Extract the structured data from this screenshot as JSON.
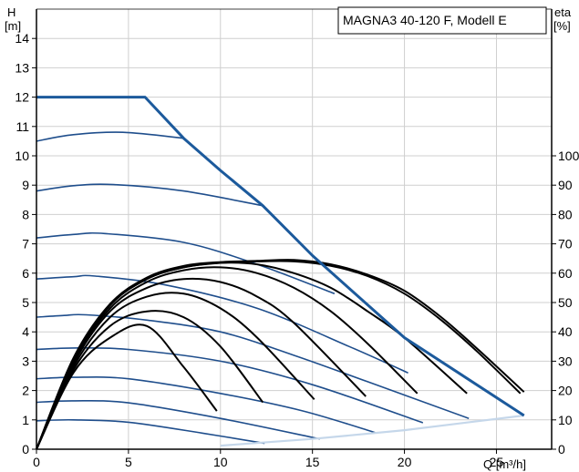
{
  "chart_data": {
    "type": "line",
    "title": "MAGNA3 40-120 F, Modell E",
    "xlabel": "Q [m³/h]",
    "ylabel_left": [
      "H",
      "[m]"
    ],
    "ylabel_right": [
      "eta",
      "[%]"
    ],
    "xlim": [
      0,
      28
    ],
    "ylim_left": [
      0,
      15
    ],
    "ylim_right": [
      0,
      150
    ],
    "grid": true,
    "x_ticks": [
      0,
      5,
      10,
      15,
      20,
      25
    ],
    "y_ticks_left": [
      0,
      1,
      2,
      3,
      4,
      5,
      6,
      7,
      8,
      9,
      10,
      11,
      12,
      13,
      14
    ],
    "y_ticks_right": [
      0,
      10,
      20,
      30,
      40,
      50,
      60,
      70,
      80,
      90,
      100
    ],
    "colors": {
      "head_curves": "#1f4e8c",
      "max_curve": "#1c5a9c",
      "min_curve": "#c5d7ea",
      "efficiency": "#000000"
    },
    "max_curve": {
      "x": [
        0,
        5.9,
        8.0,
        10.0,
        12.3,
        15.0,
        20.0,
        26.5
      ],
      "y": [
        12.0,
        12.0,
        10.6,
        9.5,
        8.3,
        6.6,
        3.8,
        1.15
      ]
    },
    "min_curve": {
      "x": [
        10.0,
        15.0,
        20.0,
        26.5
      ],
      "y": [
        0.12,
        0.35,
        0.65,
        1.15
      ]
    },
    "head_curves": [
      {
        "x": [
          0,
          2.0,
          4.7,
          8.0
        ],
        "y": [
          10.5,
          10.72,
          10.8,
          10.6
        ]
      },
      {
        "x": [
          0,
          2.0,
          4.2,
          8.0,
          12.3
        ],
        "y": [
          8.8,
          8.98,
          9.02,
          8.8,
          8.3
        ]
      },
      {
        "x": [
          0,
          2.0,
          3.7,
          8.0,
          12.0,
          16.2
        ],
        "y": [
          7.2,
          7.32,
          7.35,
          7.05,
          6.3,
          5.3
        ]
      },
      {
        "x": [
          0,
          2.0,
          3.2,
          7.0,
          12.0,
          17.0,
          20.2
        ],
        "y": [
          5.8,
          5.88,
          5.9,
          5.6,
          4.8,
          3.5,
          2.6
        ]
      },
      {
        "x": [
          0,
          1.5,
          2.7,
          6.0,
          10.0,
          14.0,
          18.0,
          23.5
        ],
        "y": [
          4.5,
          4.56,
          4.58,
          4.4,
          4.0,
          3.2,
          2.3,
          1.05
        ]
      },
      {
        "x": [
          0,
          2.0,
          5.0,
          10.0,
          15.0,
          21.0
        ],
        "y": [
          3.4,
          3.45,
          3.4,
          3.0,
          2.2,
          0.9
        ]
      },
      {
        "x": [
          0,
          2.0,
          5.0,
          10.0,
          14.5,
          18.5
        ],
        "y": [
          2.4,
          2.45,
          2.4,
          1.9,
          1.3,
          0.55
        ]
      },
      {
        "x": [
          0,
          2.0,
          5.0,
          10.0,
          15.4
        ],
        "y": [
          1.6,
          1.65,
          1.58,
          1.05,
          0.35
        ]
      },
      {
        "x": [
          0,
          2.0,
          5.0,
          9.0,
          12.4
        ],
        "y": [
          0.97,
          1.0,
          0.92,
          0.55,
          0.2
        ]
      }
    ],
    "efficiency_curves": [
      {
        "x": [
          0,
          2.0,
          4.0,
          6.0,
          8.0,
          9.8
        ],
        "y": [
          0,
          26,
          38,
          42,
          28,
          13
        ]
      },
      {
        "x": [
          0,
          2.0,
          4.0,
          6.0,
          8.0,
          10.0,
          12.3
        ],
        "y": [
          0,
          27,
          42,
          47,
          45,
          35,
          16
        ]
      },
      {
        "x": [
          0,
          2.0,
          4.0,
          6.0,
          8.0,
          10.0,
          12.0,
          15.1
        ],
        "y": [
          0,
          28,
          45,
          52,
          53,
          48,
          38,
          17
        ]
      },
      {
        "x": [
          0,
          2.0,
          4.0,
          6.0,
          8.0,
          10.0,
          12.0,
          14.0,
          17.9
        ],
        "y": [
          0,
          29,
          47,
          55,
          58,
          57,
          52,
          43,
          18
        ]
      },
      {
        "x": [
          0,
          2.0,
          4.0,
          6.0,
          8.0,
          10.0,
          12.0,
          14.0,
          16.0,
          18.0,
          20.7
        ],
        "y": [
          0,
          30,
          48,
          57,
          61,
          62,
          60,
          55,
          47,
          36,
          19
        ]
      },
      {
        "x": [
          0,
          2.0,
          4.0,
          6.0,
          8.0,
          10.0,
          12.0,
          14.0,
          16.0,
          18.0,
          20.0,
          23.4
        ],
        "y": [
          0,
          30,
          49,
          58,
          62,
          63.5,
          63,
          60,
          55,
          47,
          38,
          19
        ]
      },
      {
        "x": [
          0,
          2.0,
          4.0,
          6.0,
          8.0,
          10.0,
          12.0,
          14.0,
          16.0,
          18.0,
          20.0,
          22.0,
          24.0,
          26.3
        ],
        "y": [
          0,
          30,
          49,
          58,
          62,
          63.5,
          64,
          64,
          62.5,
          59,
          53,
          44,
          33,
          19
        ]
      },
      {
        "x": [
          0,
          2.0,
          4.0,
          6.0,
          8.0,
          10.0,
          12.0,
          14.0,
          16.0,
          18.0,
          20.0,
          22.0,
          24.0,
          26.5
        ],
        "y": [
          0,
          31,
          49.5,
          58.5,
          62.5,
          63.8,
          64.2,
          64.5,
          63,
          59.5,
          54,
          45,
          34,
          19.5
        ]
      }
    ]
  }
}
